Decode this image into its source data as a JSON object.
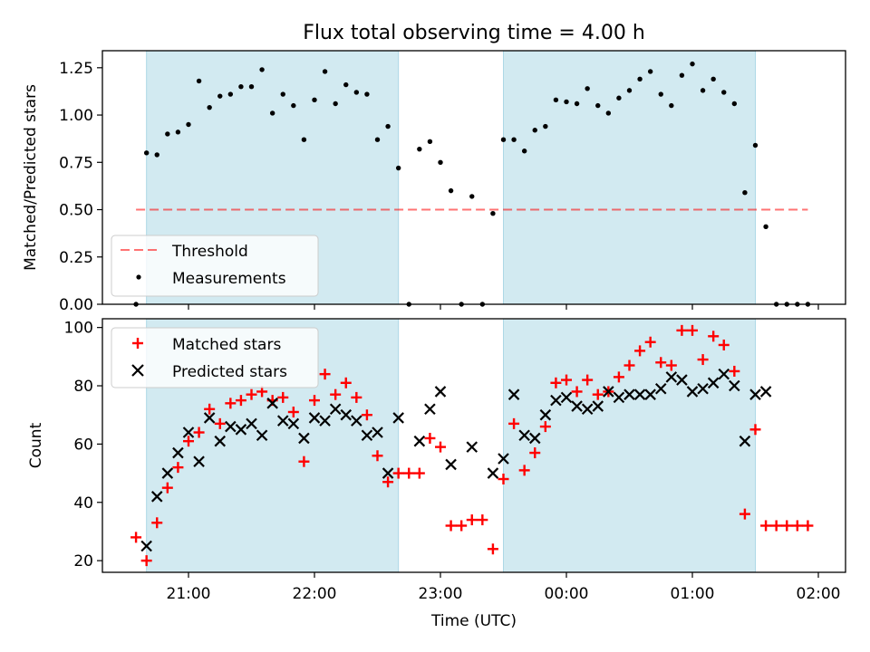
{
  "chart_data": [
    {
      "panel": "top",
      "type": "scatter",
      "title": "Flux total observing time = 4.00 h",
      "xlabel": "",
      "ylabel": "Matched/Predicted stars",
      "ylim": [
        0,
        1.34
      ],
      "yticks": [
        {
          "v": 0.0,
          "label": "0.00"
        },
        {
          "v": 0.25,
          "label": "0.25"
        },
        {
          "v": 0.5,
          "label": "0.50"
        },
        {
          "v": 0.75,
          "label": "0.75"
        },
        {
          "v": 1.0,
          "label": "1.00"
        },
        {
          "v": 1.25,
          "label": "1.25"
        }
      ],
      "shaded_intervals": [
        [
          "20:40",
          "22:40"
        ],
        [
          "23:30",
          "01:30"
        ]
      ],
      "shade_color": "#add8e6",
      "threshold": {
        "name": "Threshold",
        "value": 0.5,
        "x_range": [
          "20:35",
          "01:55"
        ],
        "color": "#ff0000"
      },
      "legend": {
        "position": "lower-left",
        "entries": [
          "Threshold",
          "Measurements"
        ]
      },
      "series": [
        {
          "name": "Measurements",
          "color": "#000000",
          "points": [
            [
              "20:35",
              0.0
            ],
            [
              "20:40",
              0.8
            ],
            [
              "20:45",
              0.79
            ],
            [
              "20:50",
              0.9
            ],
            [
              "20:55",
              0.91
            ],
            [
              "21:00",
              0.95
            ],
            [
              "21:05",
              1.18
            ],
            [
              "21:10",
              1.04
            ],
            [
              "21:15",
              1.1
            ],
            [
              "21:20",
              1.11
            ],
            [
              "21:25",
              1.15
            ],
            [
              "21:30",
              1.15
            ],
            [
              "21:35",
              1.24
            ],
            [
              "21:40",
              1.01
            ],
            [
              "21:45",
              1.11
            ],
            [
              "21:50",
              1.05
            ],
            [
              "21:55",
              0.87
            ],
            [
              "22:00",
              1.08
            ],
            [
              "22:05",
              1.23
            ],
            [
              "22:10",
              1.06
            ],
            [
              "22:15",
              1.16
            ],
            [
              "22:20",
              1.12
            ],
            [
              "22:25",
              1.11
            ],
            [
              "22:30",
              0.87
            ],
            [
              "22:35",
              0.94
            ],
            [
              "22:40",
              0.72
            ],
            [
              "22:45",
              0.0
            ],
            [
              "22:50",
              0.82
            ],
            [
              "22:55",
              0.86
            ],
            [
              "23:00",
              0.75
            ],
            [
              "23:05",
              0.6
            ],
            [
              "23:10",
              0.0
            ],
            [
              "23:15",
              0.57
            ],
            [
              "23:20",
              0.0
            ],
            [
              "23:25",
              0.48
            ],
            [
              "23:30",
              0.87
            ],
            [
              "23:35",
              0.87
            ],
            [
              "23:40",
              0.81
            ],
            [
              "23:45",
              0.92
            ],
            [
              "23:50",
              0.94
            ],
            [
              "23:55",
              1.08
            ],
            [
              "00:00",
              1.07
            ],
            [
              "00:05",
              1.06
            ],
            [
              "00:10",
              1.14
            ],
            [
              "00:15",
              1.05
            ],
            [
              "00:20",
              1.01
            ],
            [
              "00:25",
              1.09
            ],
            [
              "00:30",
              1.13
            ],
            [
              "00:35",
              1.19
            ],
            [
              "00:40",
              1.23
            ],
            [
              "00:45",
              1.11
            ],
            [
              "00:50",
              1.05
            ],
            [
              "00:55",
              1.21
            ],
            [
              "01:00",
              1.27
            ],
            [
              "01:05",
              1.13
            ],
            [
              "01:10",
              1.19
            ],
            [
              "01:15",
              1.12
            ],
            [
              "01:20",
              1.06
            ],
            [
              "01:25",
              0.59
            ],
            [
              "01:30",
              0.84
            ],
            [
              "01:35",
              0.41
            ],
            [
              "01:40",
              0.0
            ],
            [
              "01:45",
              0.0
            ],
            [
              "01:50",
              0.0
            ],
            [
              "01:55",
              0.0
            ]
          ]
        }
      ]
    },
    {
      "panel": "bottom",
      "type": "scatter",
      "title": "",
      "xlabel": "Time (UTC)",
      "ylabel": "Count",
      "xlim": [
        "20:19",
        "02:12"
      ],
      "xticks": [
        "21:00",
        "22:00",
        "23:00",
        "00:00",
        "01:00",
        "02:00"
      ],
      "ylim": [
        16,
        103
      ],
      "yticks": [
        20,
        40,
        60,
        80,
        100
      ],
      "shaded_intervals": [
        [
          "20:40",
          "22:40"
        ],
        [
          "23:30",
          "01:30"
        ]
      ],
      "legend": {
        "position": "upper-left",
        "entries": [
          "Matched stars",
          "Predicted stars"
        ]
      },
      "series": [
        {
          "name": "Matched stars",
          "marker": "+",
          "color": "#ff0000",
          "points": [
            [
              "20:35",
              28
            ],
            [
              "20:40",
              20
            ],
            [
              "20:45",
              33
            ],
            [
              "20:50",
              45
            ],
            [
              "20:55",
              52
            ],
            [
              "21:00",
              61
            ],
            [
              "21:05",
              64
            ],
            [
              "21:10",
              72
            ],
            [
              "21:15",
              67
            ],
            [
              "21:20",
              74
            ],
            [
              "21:25",
              75
            ],
            [
              "21:30",
              77
            ],
            [
              "21:35",
              78
            ],
            [
              "21:40",
              75
            ],
            [
              "21:45",
              76
            ],
            [
              "21:50",
              71
            ],
            [
              "21:55",
              54
            ],
            [
              "22:00",
              75
            ],
            [
              "22:05",
              84
            ],
            [
              "22:10",
              77
            ],
            [
              "22:15",
              81
            ],
            [
              "22:20",
              76
            ],
            [
              "22:25",
              70
            ],
            [
              "22:30",
              56
            ],
            [
              "22:35",
              47
            ],
            [
              "22:40",
              50
            ],
            [
              "22:45",
              50
            ],
            [
              "22:50",
              50
            ],
            [
              "22:55",
              62
            ],
            [
              "23:00",
              59
            ],
            [
              "23:05",
              32
            ],
            [
              "23:10",
              32
            ],
            [
              "23:15",
              34
            ],
            [
              "23:20",
              34
            ],
            [
              "23:25",
              24
            ],
            [
              "23:30",
              48
            ],
            [
              "23:35",
              67
            ],
            [
              "23:40",
              51
            ],
            [
              "23:45",
              57
            ],
            [
              "23:50",
              66
            ],
            [
              "23:55",
              81
            ],
            [
              "00:00",
              82
            ],
            [
              "00:05",
              78
            ],
            [
              "00:10",
              82
            ],
            [
              "00:15",
              77
            ],
            [
              "00:20",
              78
            ],
            [
              "00:25",
              83
            ],
            [
              "00:30",
              87
            ],
            [
              "00:35",
              92
            ],
            [
              "00:40",
              95
            ],
            [
              "00:45",
              88
            ],
            [
              "00:50",
              87
            ],
            [
              "00:55",
              99
            ],
            [
              "01:00",
              99
            ],
            [
              "01:05",
              89
            ],
            [
              "01:10",
              97
            ],
            [
              "01:15",
              94
            ],
            [
              "01:20",
              85
            ],
            [
              "01:25",
              36
            ],
            [
              "01:30",
              65
            ],
            [
              "01:35",
              32
            ],
            [
              "01:40",
              32
            ],
            [
              "01:45",
              32
            ],
            [
              "01:50",
              32
            ],
            [
              "01:55",
              32
            ]
          ]
        },
        {
          "name": "Predicted stars",
          "marker": "x",
          "color": "#000000",
          "points": [
            [
              "20:40",
              25
            ],
            [
              "20:45",
              42
            ],
            [
              "20:50",
              50
            ],
            [
              "20:55",
              57
            ],
            [
              "21:00",
              64
            ],
            [
              "21:05",
              54
            ],
            [
              "21:10",
              69
            ],
            [
              "21:15",
              61
            ],
            [
              "21:20",
              66
            ],
            [
              "21:25",
              65
            ],
            [
              "21:30",
              67
            ],
            [
              "21:35",
              63
            ],
            [
              "21:40",
              74
            ],
            [
              "21:45",
              68
            ],
            [
              "21:50",
              67
            ],
            [
              "21:55",
              62
            ],
            [
              "22:00",
              69
            ],
            [
              "22:05",
              68
            ],
            [
              "22:10",
              72
            ],
            [
              "22:15",
              70
            ],
            [
              "22:20",
              68
            ],
            [
              "22:25",
              63
            ],
            [
              "22:30",
              64
            ],
            [
              "22:35",
              50
            ],
            [
              "22:40",
              69
            ],
            [
              "22:55",
              72
            ],
            [
              "23:00",
              78
            ],
            [
              "22:50",
              61
            ],
            [
              "23:05",
              53
            ],
            [
              "23:15",
              59
            ],
            [
              "23:25",
              50
            ],
            [
              "23:30",
              55
            ],
            [
              "23:35",
              77
            ],
            [
              "23:40",
              63
            ],
            [
              "23:45",
              62
            ],
            [
              "23:50",
              70
            ],
            [
              "23:55",
              75
            ],
            [
              "00:00",
              76
            ],
            [
              "00:05",
              73
            ],
            [
              "00:10",
              72
            ],
            [
              "00:15",
              73
            ],
            [
              "00:20",
              78
            ],
            [
              "00:25",
              76
            ],
            [
              "00:30",
              77
            ],
            [
              "00:35",
              77
            ],
            [
              "00:40",
              77
            ],
            [
              "00:45",
              79
            ],
            [
              "00:50",
              83
            ],
            [
              "00:55",
              82
            ],
            [
              "01:00",
              78
            ],
            [
              "01:05",
              79
            ],
            [
              "01:10",
              81
            ],
            [
              "01:15",
              84
            ],
            [
              "01:20",
              80
            ],
            [
              "01:25",
              61
            ],
            [
              "01:30",
              77
            ],
            [
              "01:35",
              78
            ]
          ]
        }
      ]
    }
  ]
}
